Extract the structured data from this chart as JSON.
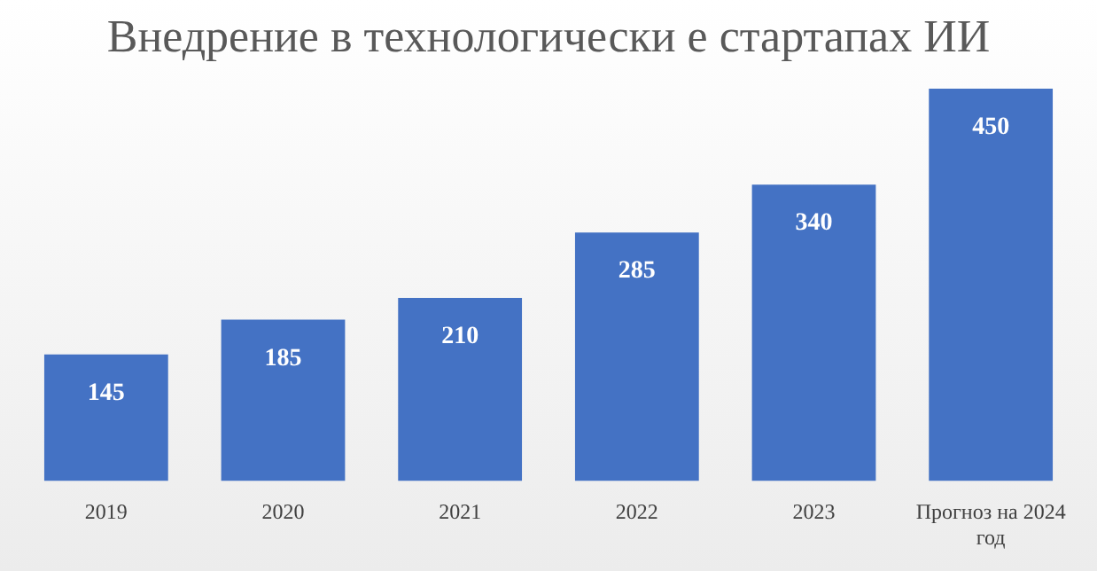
{
  "chart_data": {
    "type": "bar",
    "title": "Внедрение в технологически е стартапах ИИ",
    "categories": [
      "2019",
      "2020",
      "2021",
      "2022",
      "2023",
      "Прогноз на 2024 год"
    ],
    "values": [
      145,
      185,
      210,
      285,
      340,
      450
    ],
    "color": "#4472c4",
    "data_labels": true,
    "grid": false,
    "legend": false
  }
}
